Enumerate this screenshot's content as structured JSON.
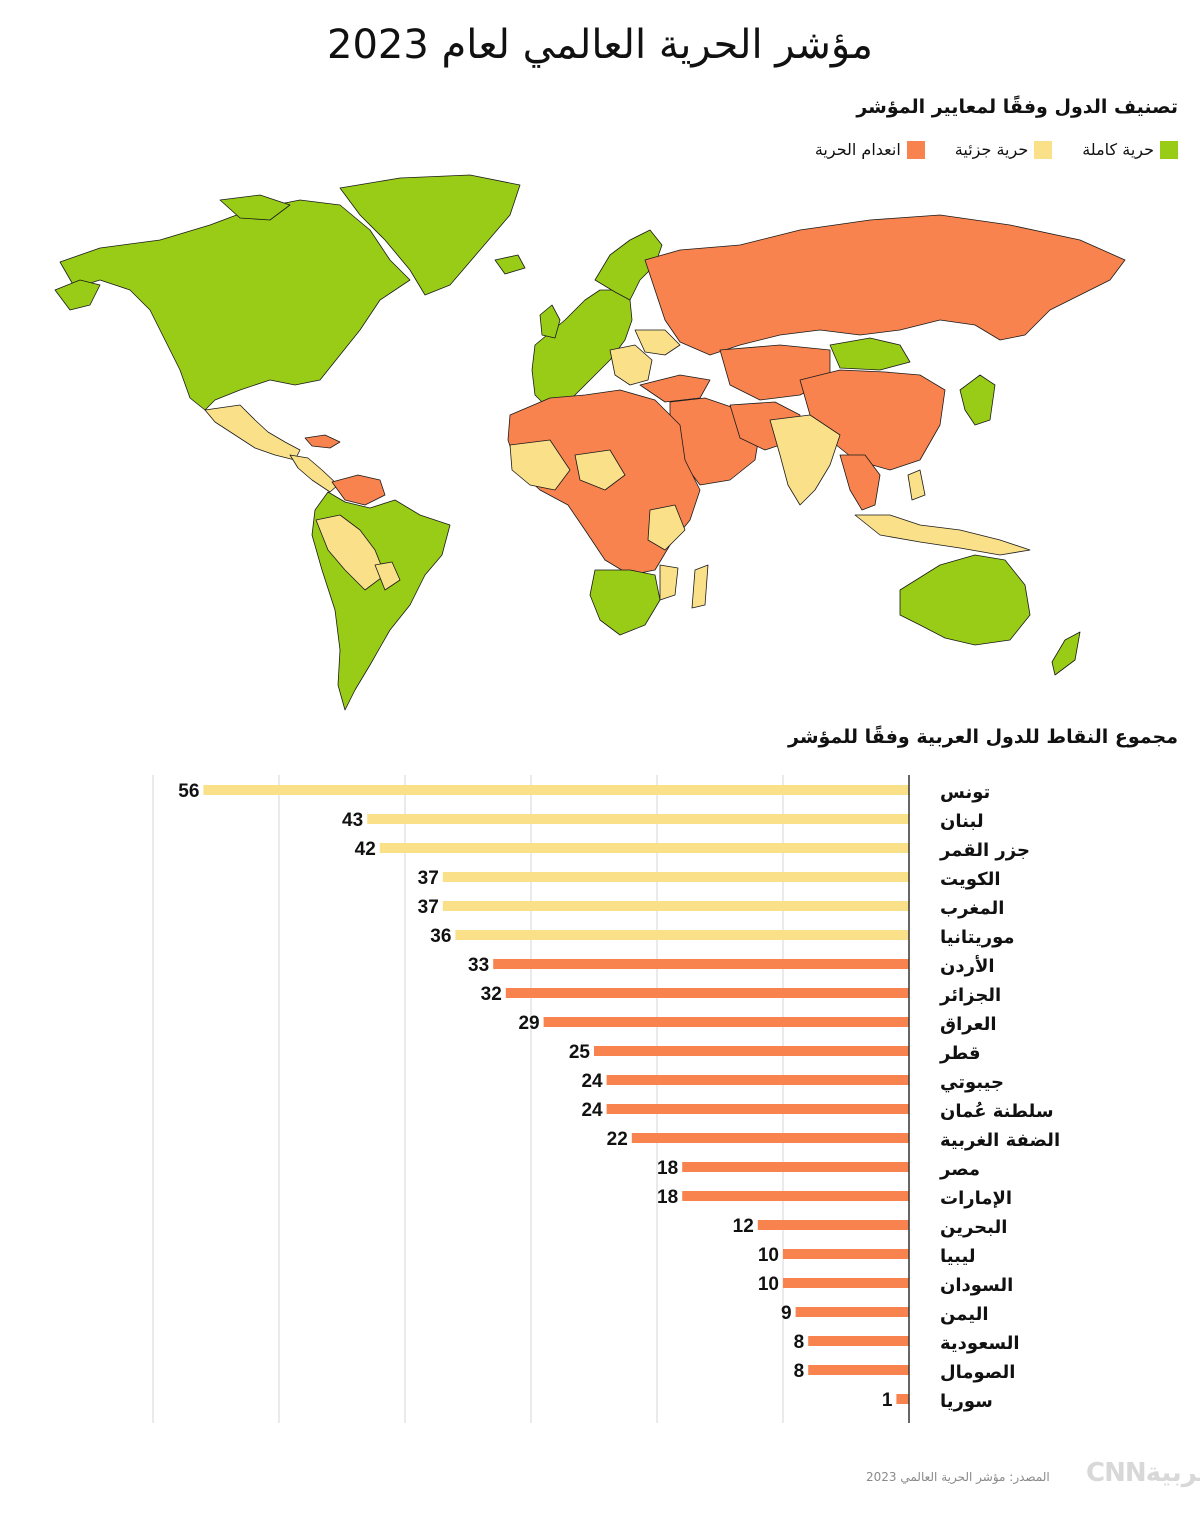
{
  "title": "مؤشر الحرية العالمي لعام 2023",
  "map": {
    "heading": "تصنيف الدول وفقًا لمعايير المؤشر",
    "legend": [
      {
        "label": "حرية كاملة",
        "color": "#98cc17"
      },
      {
        "label": "حرية جزئية",
        "color": "#fbe08a"
      },
      {
        "label": "انعدام الحرية",
        "color": "#f8834f"
      }
    ],
    "border_color": "#1a1a1a"
  },
  "chart_heading": "مجموع النقاط للدول العربية وفقًا للمؤشر",
  "chart_data": {
    "type": "bar",
    "orientation": "horizontal",
    "title": "مجموع النقاط للدول العربية وفقًا للمؤشر",
    "xlim": [
      0,
      60
    ],
    "grid": true,
    "categories": [
      "تونس",
      "لبنان",
      "جزر القمر",
      "الكويت",
      "المغرب",
      "موريتانيا",
      "الأردن",
      "الجزائر",
      "العراق",
      "قطر",
      "جيبوتي",
      "سلطنة عُمان",
      "الضفة الغربية",
      "مصر",
      "الإمارات",
      "البحرين",
      "ليبيا",
      "السودان",
      "اليمن",
      "السعودية",
      "الصومال",
      "سوريا"
    ],
    "values": [
      56,
      43,
      42,
      37,
      37,
      36,
      33,
      32,
      29,
      25,
      24,
      24,
      22,
      18,
      18,
      12,
      10,
      10,
      9,
      8,
      8,
      1
    ],
    "status": [
      "partly",
      "partly",
      "partly",
      "partly",
      "partly",
      "partly",
      "not",
      "not",
      "not",
      "not",
      "not",
      "not",
      "not",
      "not",
      "not",
      "not",
      "not",
      "not",
      "not",
      "not",
      "not",
      "not"
    ],
    "colors": {
      "partly": "#fbe08a",
      "not": "#f8834f"
    }
  },
  "source": "المصدر: مؤشر الحرية العالمي 2023",
  "brand": "CNNبالعربية"
}
